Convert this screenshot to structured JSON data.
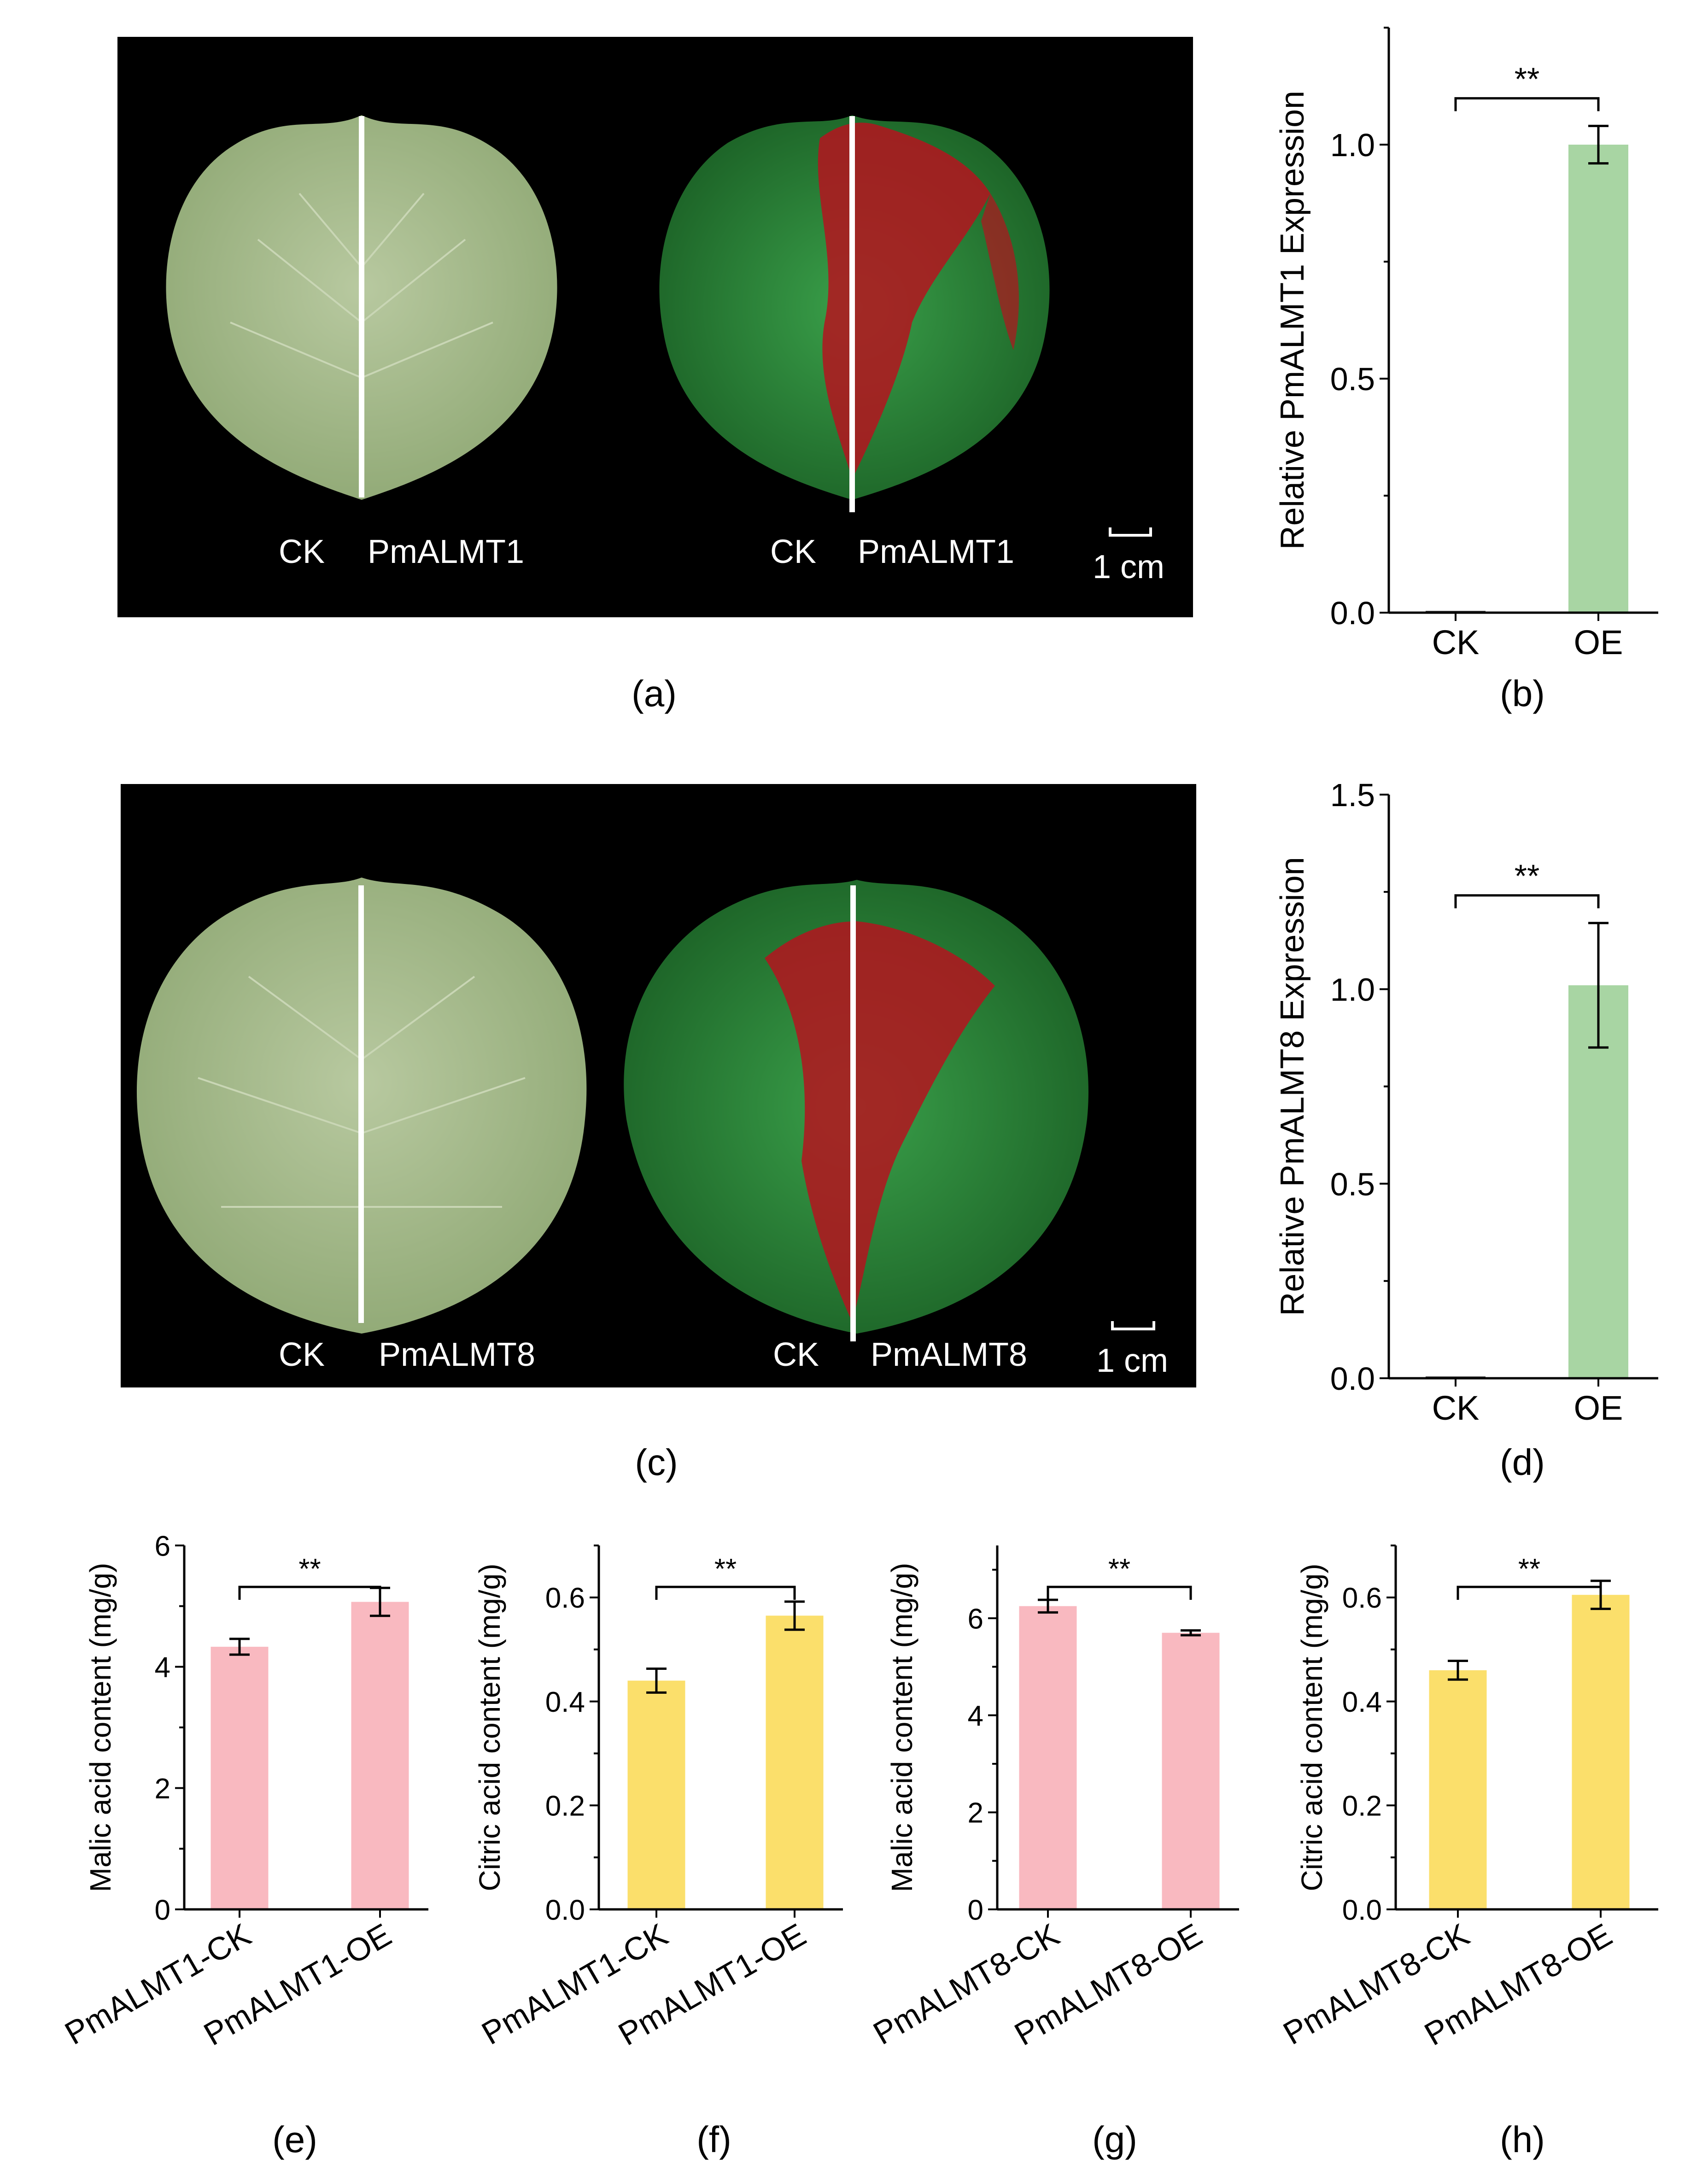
{
  "panel_labels": {
    "a": "(a)",
    "b": "(b)",
    "c": "(c)",
    "d": "(d)",
    "e": "(e)",
    "f": "(f)",
    "g": "(g)",
    "h": "(h)"
  },
  "photo_a": {
    "left_ck": "CK",
    "left_gene": "PmALMT1",
    "right_ck": "CK",
    "right_gene": "PmALMT1",
    "scale": "1 cm"
  },
  "photo_c": {
    "left_ck": "CK",
    "left_gene": "PmALMT8",
    "right_ck": "CK",
    "right_gene": "PmALMT8",
    "scale": "1 cm"
  },
  "colors": {
    "green_bar": "#a8d5a3",
    "pink_bar": "#f9b9c0",
    "yellow_bar": "#fbdf6b",
    "photo_bg": "#000000",
    "leaf": "#9cb380",
    "fluor_green": "#2e8f3c",
    "fluor_red": "#b4141e"
  },
  "chart_data": [
    {
      "id": "b",
      "type": "bar",
      "categories": [
        "CK",
        "OE"
      ],
      "values": [
        0.0,
        1.0
      ],
      "errors": [
        0.0,
        0.04
      ],
      "ylabel": "Relative PmALMT1 Expression",
      "ylim": [
        0,
        1.25
      ],
      "yticks": [
        0.0,
        0.5,
        1.0
      ],
      "ytick_labels": [
        "0.0",
        "0.5",
        "1.0"
      ],
      "color": "green_bar",
      "significance": "**"
    },
    {
      "id": "d",
      "type": "bar",
      "categories": [
        "CK",
        "OE"
      ],
      "values": [
        0.0,
        1.01
      ],
      "errors": [
        0.0,
        0.16
      ],
      "ylabel": "Relative PmALMT8 Expression",
      "ylim": [
        0,
        1.5
      ],
      "yticks": [
        0.0,
        0.5,
        1.0,
        1.5
      ],
      "ytick_labels": [
        "0.0",
        "0.5",
        "1.0",
        "1.5"
      ],
      "color": "green_bar",
      "significance": "**"
    },
    {
      "id": "e",
      "type": "bar",
      "categories": [
        "PmALMT1-CK",
        "PmALMT1-OE"
      ],
      "values": [
        4.33,
        5.07
      ],
      "errors": [
        0.13,
        0.23
      ],
      "ylabel": "Malic acid content (mg/g)",
      "ylim": [
        0,
        6
      ],
      "yticks": [
        0,
        2,
        4,
        6
      ],
      "ytick_labels": [
        "0",
        "2",
        "4",
        "6"
      ],
      "color": "pink_bar",
      "significance": "**"
    },
    {
      "id": "f",
      "type": "bar",
      "categories": [
        "PmALMT1-CK",
        "PmALMT1-OE"
      ],
      "values": [
        0.44,
        0.565
      ],
      "errors": [
        0.023,
        0.027
      ],
      "ylabel": "Citric acid content (mg/g)",
      "ylim": [
        0,
        0.7
      ],
      "yticks": [
        0.0,
        0.2,
        0.4,
        0.6
      ],
      "ytick_labels": [
        "0.0",
        "0.2",
        "0.4",
        "0.6"
      ],
      "color": "yellow_bar",
      "significance": "**"
    },
    {
      "id": "g",
      "type": "bar",
      "categories": [
        "PmALMT8-CK",
        "PmALMT8-OE"
      ],
      "values": [
        6.25,
        5.7
      ],
      "errors": [
        0.13,
        0.05
      ],
      "ylabel": "Malic acid content (mg/g)",
      "ylim": [
        0,
        7.5
      ],
      "yticks": [
        0,
        2,
        4,
        6
      ],
      "ytick_labels": [
        "0",
        "2",
        "4",
        "6"
      ],
      "color": "pink_bar",
      "significance": "**"
    },
    {
      "id": "h",
      "type": "bar",
      "categories": [
        "PmALMT8-CK",
        "PmALMT8-OE"
      ],
      "values": [
        0.46,
        0.605
      ],
      "errors": [
        0.018,
        0.027
      ],
      "ylabel": "Citric acid content (mg/g)",
      "ylim": [
        0,
        0.7
      ],
      "yticks": [
        0.0,
        0.2,
        0.4,
        0.6
      ],
      "ytick_labels": [
        "0.0",
        "0.2",
        "0.4",
        "0.6"
      ],
      "color": "yellow_bar",
      "significance": "**"
    }
  ]
}
